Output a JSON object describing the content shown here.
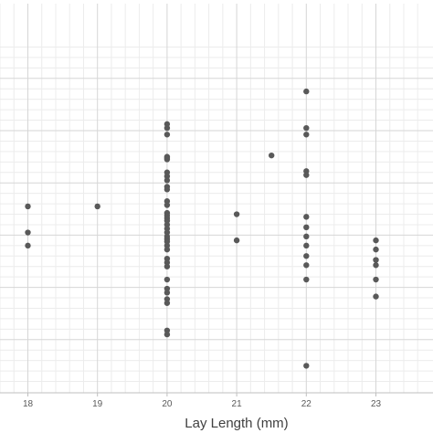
{
  "chart_data": {
    "type": "scatter",
    "title": "",
    "xlabel": "Lay Length (mm)",
    "ylabel": "",
    "xlim": [
      17.6,
      23.7
    ],
    "ylim": [
      0,
      13.2
    ],
    "x_ticks": [
      "18",
      "19",
      "20",
      "21",
      "22",
      "23"
    ],
    "grid": true,
    "minor_grid": true,
    "legend": "none",
    "marker_color": "#595959",
    "points": [
      {
        "x": 18,
        "y": 7.1
      },
      {
        "x": 18,
        "y": 6.1
      },
      {
        "x": 18,
        "y": 5.6
      },
      {
        "x": 19,
        "y": 7.1
      },
      {
        "x": 20,
        "y": 10.25
      },
      {
        "x": 20,
        "y": 10.1
      },
      {
        "x": 20,
        "y": 9.85
      },
      {
        "x": 20,
        "y": 9.0
      },
      {
        "x": 20,
        "y": 8.95
      },
      {
        "x": 20,
        "y": 8.9
      },
      {
        "x": 20,
        "y": 8.4
      },
      {
        "x": 20,
        "y": 8.25
      },
      {
        "x": 20,
        "y": 8.1
      },
      {
        "x": 20,
        "y": 7.85
      },
      {
        "x": 20,
        "y": 7.75
      },
      {
        "x": 20,
        "y": 7.3
      },
      {
        "x": 20,
        "y": 7.15
      },
      {
        "x": 20,
        "y": 6.85
      },
      {
        "x": 20,
        "y": 6.75
      },
      {
        "x": 20,
        "y": 6.65
      },
      {
        "x": 20,
        "y": 6.55
      },
      {
        "x": 20,
        "y": 6.4
      },
      {
        "x": 20,
        "y": 6.25
      },
      {
        "x": 20,
        "y": 6.1
      },
      {
        "x": 20,
        "y": 5.95
      },
      {
        "x": 20,
        "y": 5.85
      },
      {
        "x": 20,
        "y": 5.75
      },
      {
        "x": 20,
        "y": 5.6
      },
      {
        "x": 20,
        "y": 5.45
      },
      {
        "x": 20,
        "y": 5.1
      },
      {
        "x": 20,
        "y": 4.95
      },
      {
        "x": 20,
        "y": 4.8
      },
      {
        "x": 20,
        "y": 4.3
      },
      {
        "x": 20,
        "y": 3.95
      },
      {
        "x": 20,
        "y": 3.8
      },
      {
        "x": 20,
        "y": 3.55
      },
      {
        "x": 20,
        "y": 3.4
      },
      {
        "x": 20,
        "y": 2.35
      },
      {
        "x": 20,
        "y": 2.2
      },
      {
        "x": 21,
        "y": 6.8
      },
      {
        "x": 21,
        "y": 5.8
      },
      {
        "x": 21.5,
        "y": 9.05
      },
      {
        "x": 22,
        "y": 11.5
      },
      {
        "x": 22,
        "y": 10.1
      },
      {
        "x": 22,
        "y": 9.85
      },
      {
        "x": 22,
        "y": 8.45
      },
      {
        "x": 22,
        "y": 8.3
      },
      {
        "x": 22,
        "y": 6.7
      },
      {
        "x": 22,
        "y": 6.3
      },
      {
        "x": 22,
        "y": 5.95
      },
      {
        "x": 22,
        "y": 5.6
      },
      {
        "x": 22,
        "y": 5.2
      },
      {
        "x": 22,
        "y": 4.85
      },
      {
        "x": 22,
        "y": 4.3
      },
      {
        "x": 22,
        "y": 1.0
      },
      {
        "x": 23,
        "y": 5.8
      },
      {
        "x": 23,
        "y": 5.45
      },
      {
        "x": 23,
        "y": 5.05
      },
      {
        "x": 23,
        "y": 4.85
      },
      {
        "x": 23,
        "y": 4.3
      },
      {
        "x": 23,
        "y": 3.65
      }
    ]
  }
}
